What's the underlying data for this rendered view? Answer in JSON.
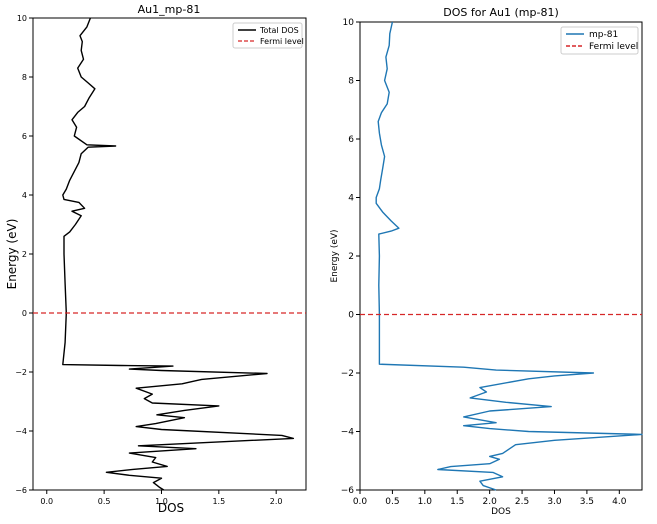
{
  "colors": {
    "left_curve": "#000000",
    "right_curve": "#1f77b4",
    "fermi": "#d62728",
    "axes": "#000000",
    "background": "#ffffff"
  },
  "chart_data": [
    {
      "type": "line",
      "orientation": "vertical",
      "title": "Au1_mp-81",
      "xlabel": "DOS",
      "ylabel": "Energy (eV)",
      "xlim": [
        -0.12,
        2.26
      ],
      "ylim": [
        -6,
        10
      ],
      "xticks": [
        0.0,
        0.5,
        1.0,
        1.5,
        2.0
      ],
      "xtick_labels": [
        "0.0",
        "0.5",
        "1.0",
        "1.5",
        "2.0"
      ],
      "yticks": [
        -6,
        -4,
        -2,
        0,
        2,
        4,
        6,
        8,
        10
      ],
      "ytick_labels": [
        "−6",
        "−4",
        "−2",
        "0",
        "2",
        "4",
        "6",
        "8",
        "10"
      ],
      "grid": false,
      "legend_position": "top-right",
      "series": [
        {
          "name": "Total DOS",
          "color": "#000000",
          "style": "solid",
          "points": [
            [
              1.02,
              -6.0
            ],
            [
              0.98,
              -5.9
            ],
            [
              0.93,
              -5.75
            ],
            [
              1.0,
              -5.6
            ],
            [
              0.72,
              -5.5
            ],
            [
              0.52,
              -5.4
            ],
            [
              0.75,
              -5.3
            ],
            [
              1.05,
              -5.2
            ],
            [
              0.92,
              -5.05
            ],
            [
              0.95,
              -4.9
            ],
            [
              0.72,
              -4.75
            ],
            [
              1.3,
              -4.6
            ],
            [
              0.8,
              -4.5
            ],
            [
              2.15,
              -4.25
            ],
            [
              2.05,
              -4.15
            ],
            [
              1.0,
              -3.95
            ],
            [
              0.78,
              -3.85
            ],
            [
              0.95,
              -3.75
            ],
            [
              1.2,
              -3.55
            ],
            [
              0.96,
              -3.45
            ],
            [
              1.2,
              -3.3
            ],
            [
              1.5,
              -3.15
            ],
            [
              0.92,
              -3.05
            ],
            [
              0.85,
              -2.9
            ],
            [
              0.92,
              -2.75
            ],
            [
              0.78,
              -2.55
            ],
            [
              1.18,
              -2.4
            ],
            [
              1.35,
              -2.25
            ],
            [
              1.92,
              -2.05
            ],
            [
              1.0,
              -1.95
            ],
            [
              0.72,
              -1.9
            ],
            [
              1.1,
              -1.8
            ],
            [
              0.65,
              -1.78
            ],
            [
              0.14,
              -1.75
            ],
            [
              0.16,
              -1.0
            ],
            [
              0.17,
              0.0
            ],
            [
              0.16,
              1.0
            ],
            [
              0.15,
              2.0
            ],
            [
              0.15,
              2.6
            ],
            [
              0.2,
              2.75
            ],
            [
              0.25,
              3.0
            ],
            [
              0.3,
              3.3
            ],
            [
              0.22,
              3.45
            ],
            [
              0.33,
              3.55
            ],
            [
              0.28,
              3.75
            ],
            [
              0.15,
              3.85
            ],
            [
              0.14,
              4.0
            ],
            [
              0.17,
              4.2
            ],
            [
              0.2,
              4.5
            ],
            [
              0.24,
              4.8
            ],
            [
              0.28,
              5.1
            ],
            [
              0.3,
              5.4
            ],
            [
              0.36,
              5.62
            ],
            [
              0.6,
              5.66
            ],
            [
              0.35,
              5.7
            ],
            [
              0.24,
              6.0
            ],
            [
              0.26,
              6.3
            ],
            [
              0.22,
              6.55
            ],
            [
              0.27,
              6.8
            ],
            [
              0.33,
              7.0
            ],
            [
              0.37,
              7.3
            ],
            [
              0.42,
              7.6
            ],
            [
              0.36,
              7.8
            ],
            [
              0.3,
              8.0
            ],
            [
              0.27,
              8.3
            ],
            [
              0.32,
              8.6
            ],
            [
              0.3,
              8.9
            ],
            [
              0.31,
              9.2
            ],
            [
              0.29,
              9.4
            ],
            [
              0.35,
              9.7
            ],
            [
              0.38,
              10.0
            ]
          ]
        },
        {
          "name": "Fermi level",
          "color": "#d62728",
          "style": "dashed",
          "constant_energy": 0
        }
      ]
    },
    {
      "type": "line",
      "orientation": "vertical",
      "title": "DOS for Au1 (mp-81)",
      "xlabel": "DOS",
      "ylabel": "Energy (eV)",
      "xlim": [
        0.0,
        4.35
      ],
      "ylim": [
        -6,
        10
      ],
      "xticks": [
        0.0,
        0.5,
        1.0,
        1.5,
        2.0,
        2.5,
        3.0,
        3.5,
        4.0
      ],
      "xtick_labels": [
        "0.0",
        "0.5",
        "1.0",
        "1.5",
        "2.0",
        "2.5",
        "3.0",
        "3.5",
        "4.0"
      ],
      "yticks": [
        -6,
        -4,
        -2,
        0,
        2,
        4,
        6,
        8,
        10
      ],
      "ytick_labels": [
        "−6",
        "−4",
        "−2",
        "0",
        "2",
        "4",
        "6",
        "8",
        "10"
      ],
      "grid": false,
      "legend_position": "top-right",
      "series": [
        {
          "name": "mp-81",
          "color": "#1f77b4",
          "style": "solid",
          "points": [
            [
              2.1,
              -6.0
            ],
            [
              1.9,
              -5.85
            ],
            [
              1.85,
              -5.7
            ],
            [
              2.2,
              -5.55
            ],
            [
              2.05,
              -5.4
            ],
            [
              1.2,
              -5.3
            ],
            [
              1.4,
              -5.2
            ],
            [
              2.0,
              -5.1
            ],
            [
              2.15,
              -4.95
            ],
            [
              2.0,
              -4.85
            ],
            [
              2.2,
              -4.75
            ],
            [
              2.3,
              -4.6
            ],
            [
              2.4,
              -4.45
            ],
            [
              3.0,
              -4.3
            ],
            [
              4.35,
              -4.1
            ],
            [
              2.6,
              -4.0
            ],
            [
              2.0,
              -3.9
            ],
            [
              1.6,
              -3.8
            ],
            [
              2.1,
              -3.7
            ],
            [
              1.6,
              -3.5
            ],
            [
              2.0,
              -3.3
            ],
            [
              2.95,
              -3.15
            ],
            [
              2.25,
              -3.0
            ],
            [
              1.7,
              -2.85
            ],
            [
              1.95,
              -2.65
            ],
            [
              1.85,
              -2.5
            ],
            [
              2.6,
              -2.2
            ],
            [
              3.0,
              -2.1
            ],
            [
              3.6,
              -2.0
            ],
            [
              2.1,
              -1.9
            ],
            [
              1.6,
              -1.8
            ],
            [
              0.3,
              -1.7
            ],
            [
              0.3,
              -1.0
            ],
            [
              0.3,
              0.0
            ],
            [
              0.29,
              1.0
            ],
            [
              0.3,
              2.0
            ],
            [
              0.29,
              2.75
            ],
            [
              0.48,
              2.85
            ],
            [
              0.6,
              2.95
            ],
            [
              0.48,
              3.2
            ],
            [
              0.35,
              3.5
            ],
            [
              0.25,
              3.8
            ],
            [
              0.25,
              4.0
            ],
            [
              0.3,
              4.3
            ],
            [
              0.32,
              4.6
            ],
            [
              0.35,
              5.0
            ],
            [
              0.38,
              5.4
            ],
            [
              0.33,
              5.8
            ],
            [
              0.3,
              6.2
            ],
            [
              0.28,
              6.6
            ],
            [
              0.33,
              6.9
            ],
            [
              0.42,
              7.2
            ],
            [
              0.45,
              7.6
            ],
            [
              0.38,
              8.0
            ],
            [
              0.42,
              8.4
            ],
            [
              0.4,
              8.8
            ],
            [
              0.45,
              9.2
            ],
            [
              0.46,
              9.6
            ],
            [
              0.5,
              10.0
            ]
          ]
        },
        {
          "name": "Fermi level",
          "color": "#d62728",
          "style": "dashed",
          "constant_energy": 0
        }
      ]
    }
  ]
}
